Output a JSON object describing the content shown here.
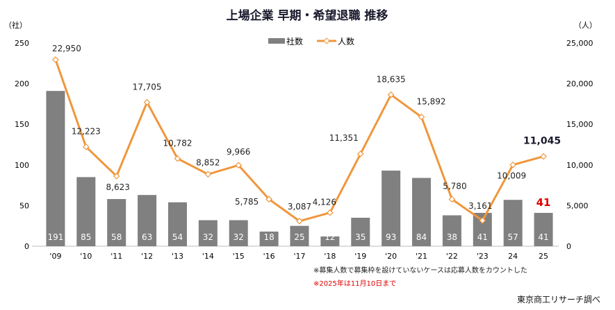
{
  "chart_data": {
    "type": "bar+line",
    "title": "上場企業 早期・希望退職 推移",
    "categories": [
      "'09",
      "'10",
      "'11",
      "'12",
      "'13",
      "'14",
      "'15",
      "'16",
      "'17",
      "'18",
      "'19",
      "'20",
      "'21",
      "'22",
      "'23",
      "24",
      "25"
    ],
    "series": [
      {
        "name": "社数",
        "type": "bar",
        "axis": "left",
        "color": "#808080",
        "values": [
          191,
          85,
          58,
          63,
          54,
          32,
          32,
          18,
          25,
          12,
          35,
          93,
          84,
          38,
          41,
          57,
          41
        ]
      },
      {
        "name": "人数",
        "type": "line",
        "axis": "right",
        "color": "#F0963C",
        "values": [
          22950,
          12223,
          8623,
          17705,
          10782,
          8852,
          9966,
          5785,
          3087,
          4126,
          11351,
          18635,
          15892,
          5780,
          3161,
          10009,
          11045
        ]
      }
    ],
    "y_left": {
      "label": "（社）",
      "range": [
        0,
        250
      ],
      "ticks": [
        "0",
        "50",
        "100",
        "150",
        "200",
        "250"
      ]
    },
    "y_right": {
      "label": "（人）",
      "range": [
        0,
        25000
      ],
      "ticks": [
        "0",
        "5,000",
        "10,000",
        "15,000",
        "20,000",
        "25,000"
      ]
    },
    "line_labels": [
      "22,950",
      "12,223",
      "8,623",
      "17,705",
      "10,782",
      "8,852",
      "9,966",
      "5,785",
      "3,087",
      "4,126",
      "11,351",
      "18,635",
      "15,892",
      "5,780",
      "3,161",
      "10,009",
      "11,045"
    ],
    "highlight_color": "#E00000",
    "legend": "top-center",
    "grid": false
  },
  "notes": {
    "note1": "※募集人数で募集枠を設けていないケースは応募人数をカウントした",
    "note2": "※2025年は11月10日まで",
    "source": "東京商工リサーチ調べ"
  }
}
